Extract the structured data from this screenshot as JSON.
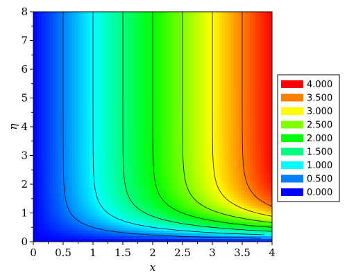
{
  "chart_data": {
    "type": "heatmap",
    "title": "",
    "xlabel": "x",
    "ylabel": "η",
    "xlim": [
      0,
      4
    ],
    "ylim": [
      0,
      8
    ],
    "x_ticks": [
      0,
      0.5,
      1,
      1.5,
      2,
      2.5,
      3,
      3.5,
      4
    ],
    "y_ticks": [
      0,
      1,
      2,
      3,
      4,
      5,
      6,
      7,
      8
    ],
    "x_tick_labels": [
      "0",
      "0.5",
      "1",
      "1.5",
      "2",
      "2.5",
      "3",
      "3.5",
      "4"
    ],
    "y_tick_labels": [
      "0",
      "1",
      "2",
      "3",
      "4",
      "5",
      "6",
      "7",
      "8"
    ],
    "contour_levels": [
      0.5,
      1,
      1.5,
      2,
      2.5,
      3,
      3.5,
      4
    ],
    "legend_position": "right",
    "legend": [
      {
        "label": "4.000",
        "color": "#ff0000"
      },
      {
        "label": "3.500",
        "color": "#ff8000"
      },
      {
        "label": "3.000",
        "color": "#ffff00"
      },
      {
        "label": "2.500",
        "color": "#80ff00"
      },
      {
        "label": "2.000",
        "color": "#00ff00"
      },
      {
        "label": "1.500",
        "color": "#00ff80"
      },
      {
        "label": "1.000",
        "color": "#00ffff"
      },
      {
        "label": "0.500",
        "color": "#0080ff"
      },
      {
        "label": "0.000",
        "color": "#0000ff"
      }
    ],
    "colorscale": [
      {
        "value": 0.0,
        "color": "#0000ff"
      },
      {
        "value": 0.5,
        "color": "#0080ff"
      },
      {
        "value": 1.0,
        "color": "#00ffff"
      },
      {
        "value": 1.5,
        "color": "#00ff80"
      },
      {
        "value": 2.0,
        "color": "#00ff00"
      },
      {
        "value": 2.5,
        "color": "#80ff00"
      },
      {
        "value": 3.0,
        "color": "#ffff00"
      },
      {
        "value": 3.5,
        "color": "#ff8000"
      },
      {
        "value": 4.0,
        "color": "#ff0000"
      }
    ]
  }
}
